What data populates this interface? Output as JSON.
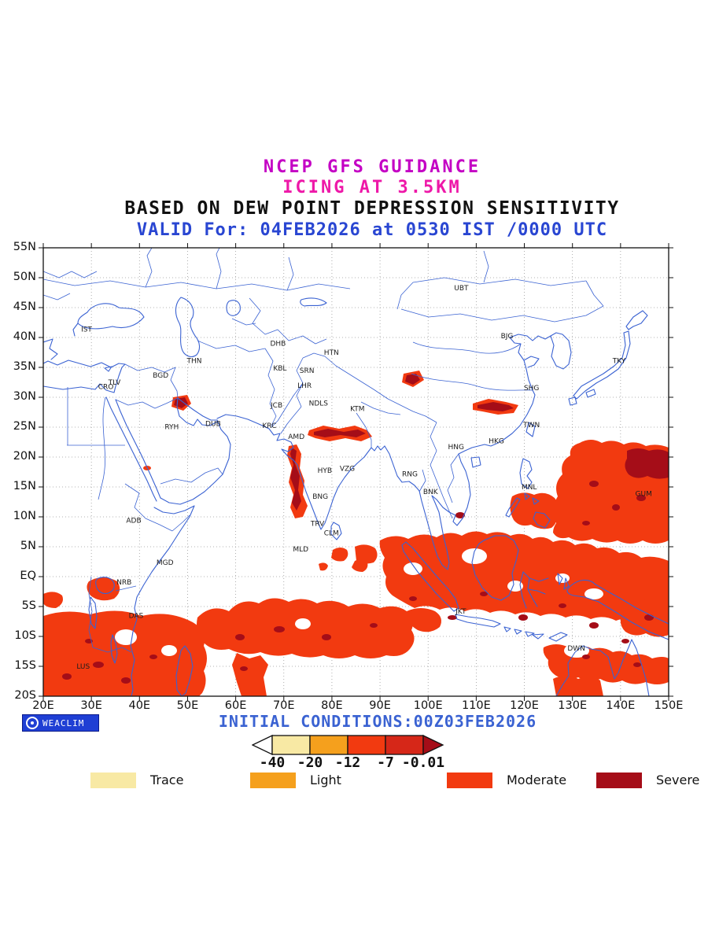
{
  "header": {
    "line1": "NCEP GFS GUIDANCE",
    "line2": "ICING AT 3.5KM",
    "line3": "BASED ON DEW POINT DEPRESSION SENSITIVITY",
    "line4": "VALID For: 04FEB2026 at 0530 IST /0000 UTC"
  },
  "colors": {
    "magenta": "#C400C4",
    "pink": "#EE18A8",
    "blue_text": "#2946D2",
    "map_blue": "#3A62D2",
    "grid_gray": "#9A9A9A",
    "trace": "#F8E9A4",
    "light": "#F5A01D",
    "moderate": "#F23A10",
    "moderate_deep": "#D62718",
    "severe": "#A50D18",
    "badge_blue": "#1F3FD4"
  },
  "axes": {
    "y_labels": [
      "55N",
      "50N",
      "45N",
      "40N",
      "35N",
      "30N",
      "25N",
      "20N",
      "15N",
      "10N",
      "5N",
      "EQ",
      "5S",
      "10S",
      "15S",
      "20S"
    ],
    "x_labels": [
      "20E",
      "30E",
      "40E",
      "50E",
      "60E",
      "70E",
      "80E",
      "90E",
      "100E",
      "110E",
      "120E",
      "130E",
      "140E",
      "150E"
    ]
  },
  "map": {
    "projection": {
      "lon_min": 20,
      "lon_max": 150,
      "lat_min": -20,
      "lat_max": 55
    },
    "cities": [
      {
        "name": "IST",
        "lon": 29.0,
        "lat": 41.0
      },
      {
        "name": "TLV",
        "lon": 34.8,
        "lat": 32.1
      },
      {
        "name": "CRO",
        "lon": 33.0,
        "lat": 31.4
      },
      {
        "name": "BGD",
        "lon": 44.4,
        "lat": 33.3
      },
      {
        "name": "THN",
        "lon": 51.4,
        "lat": 35.7
      },
      {
        "name": "RYH",
        "lon": 46.7,
        "lat": 24.7
      },
      {
        "name": "DUB",
        "lon": 55.3,
        "lat": 25.2
      },
      {
        "name": "ADB",
        "lon": 38.8,
        "lat": 9.0
      },
      {
        "name": "MGD",
        "lon": 45.3,
        "lat": 2.0
      },
      {
        "name": "NRB",
        "lon": 36.8,
        "lat": -1.3
      },
      {
        "name": "DAS",
        "lon": 39.3,
        "lat": -6.9
      },
      {
        "name": "LUS",
        "lon": 28.3,
        "lat": -15.4
      },
      {
        "name": "DHB",
        "lon": 68.8,
        "lat": 38.6
      },
      {
        "name": "KBL",
        "lon": 69.2,
        "lat": 34.5
      },
      {
        "name": "SRN",
        "lon": 74.8,
        "lat": 34.1
      },
      {
        "name": "LHR",
        "lon": 74.3,
        "lat": 31.6
      },
      {
        "name": "JCB",
        "lon": 68.5,
        "lat": 28.3
      },
      {
        "name": "NDLS",
        "lon": 77.2,
        "lat": 28.6
      },
      {
        "name": "KRC",
        "lon": 67.0,
        "lat": 24.9
      },
      {
        "name": "AMD",
        "lon": 72.6,
        "lat": 23.0
      },
      {
        "name": "HTN",
        "lon": 79.9,
        "lat": 37.1
      },
      {
        "name": "KTM",
        "lon": 85.3,
        "lat": 27.7
      },
      {
        "name": "HYB",
        "lon": 78.5,
        "lat": 17.4
      },
      {
        "name": "VZG",
        "lon": 83.2,
        "lat": 17.7
      },
      {
        "name": "BNG",
        "lon": 77.6,
        "lat": 13.0
      },
      {
        "name": "TRV",
        "lon": 77.0,
        "lat": 8.5
      },
      {
        "name": "CLM",
        "lon": 79.9,
        "lat": 6.9
      },
      {
        "name": "MLD",
        "lon": 73.5,
        "lat": 4.2
      },
      {
        "name": "RNG",
        "lon": 96.2,
        "lat": 16.8
      },
      {
        "name": "BNK",
        "lon": 100.5,
        "lat": 13.8
      },
      {
        "name": "HNG",
        "lon": 105.8,
        "lat": 21.3
      },
      {
        "name": "UBT",
        "lon": 106.9,
        "lat": 47.9
      },
      {
        "name": "BJG",
        "lon": 116.4,
        "lat": 39.9
      },
      {
        "name": "SHG",
        "lon": 121.5,
        "lat": 31.2
      },
      {
        "name": "TKY",
        "lon": 139.7,
        "lat": 35.7
      },
      {
        "name": "TWN",
        "lon": 121.5,
        "lat": 25.0
      },
      {
        "name": "HKG",
        "lon": 114.2,
        "lat": 22.3
      },
      {
        "name": "MNL",
        "lon": 121.0,
        "lat": 14.6
      },
      {
        "name": "GUM",
        "lon": 144.8,
        "lat": 13.5
      },
      {
        "name": "JKT",
        "lon": 106.8,
        "lat": -6.2
      },
      {
        "name": "DWN",
        "lon": 130.8,
        "lat": -12.4
      }
    ]
  },
  "footer": {
    "initial_conditions": "INITIAL CONDITIONS:00Z03FEB2026",
    "badge": "WEACLIM"
  },
  "scale": {
    "values": [
      "-40",
      "-20",
      "-12",
      "-7",
      "-0.01"
    ]
  },
  "legend": {
    "items": [
      {
        "label": "Trace",
        "color_key": "trace"
      },
      {
        "label": "Light",
        "color_key": "light"
      },
      {
        "label": "Moderate",
        "color_key": "moderate"
      },
      {
        "label": "Severe",
        "color_key": "severe"
      }
    ]
  }
}
